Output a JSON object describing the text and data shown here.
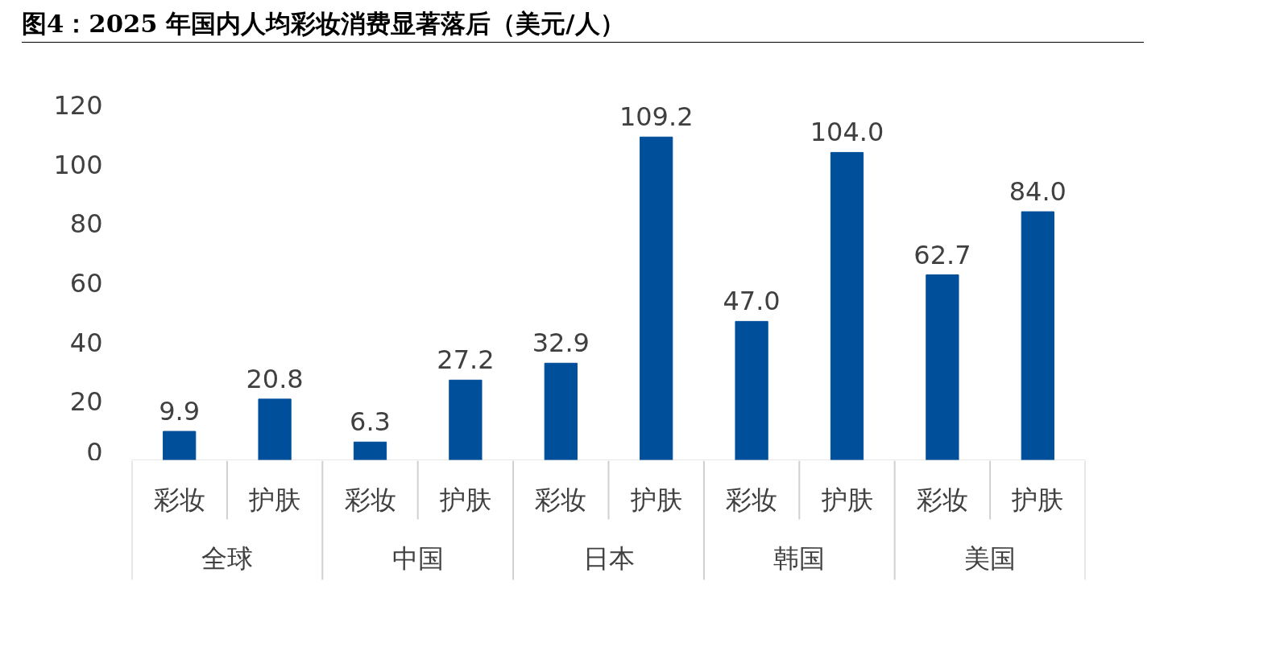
{
  "chart_data": {
    "type": "bar",
    "title": "图4：2025 年国内人均彩妆消费显著落后（美元/人）",
    "categories": [
      "全球",
      "中国",
      "日本",
      "韩国",
      "美国"
    ],
    "series": [
      {
        "name": "彩妆",
        "color": "#004f9a",
        "values": [
          9.9,
          6.3,
          32.9,
          47.0,
          62.7
        ],
        "value_labels": [
          "9.9",
          "6.3",
          "32.9",
          "47.0",
          "62.7"
        ]
      },
      {
        "name": "护肤",
        "color": "#004f9a",
        "values": [
          20.8,
          27.2,
          109.2,
          104.0,
          84.0
        ],
        "value_labels": [
          "20.8",
          "27.2",
          "109.2",
          "104.0",
          "84.0"
        ]
      }
    ],
    "ylim": [
      0,
      120
    ],
    "yticks": [
      0,
      20,
      40,
      60,
      80,
      100,
      120
    ]
  }
}
